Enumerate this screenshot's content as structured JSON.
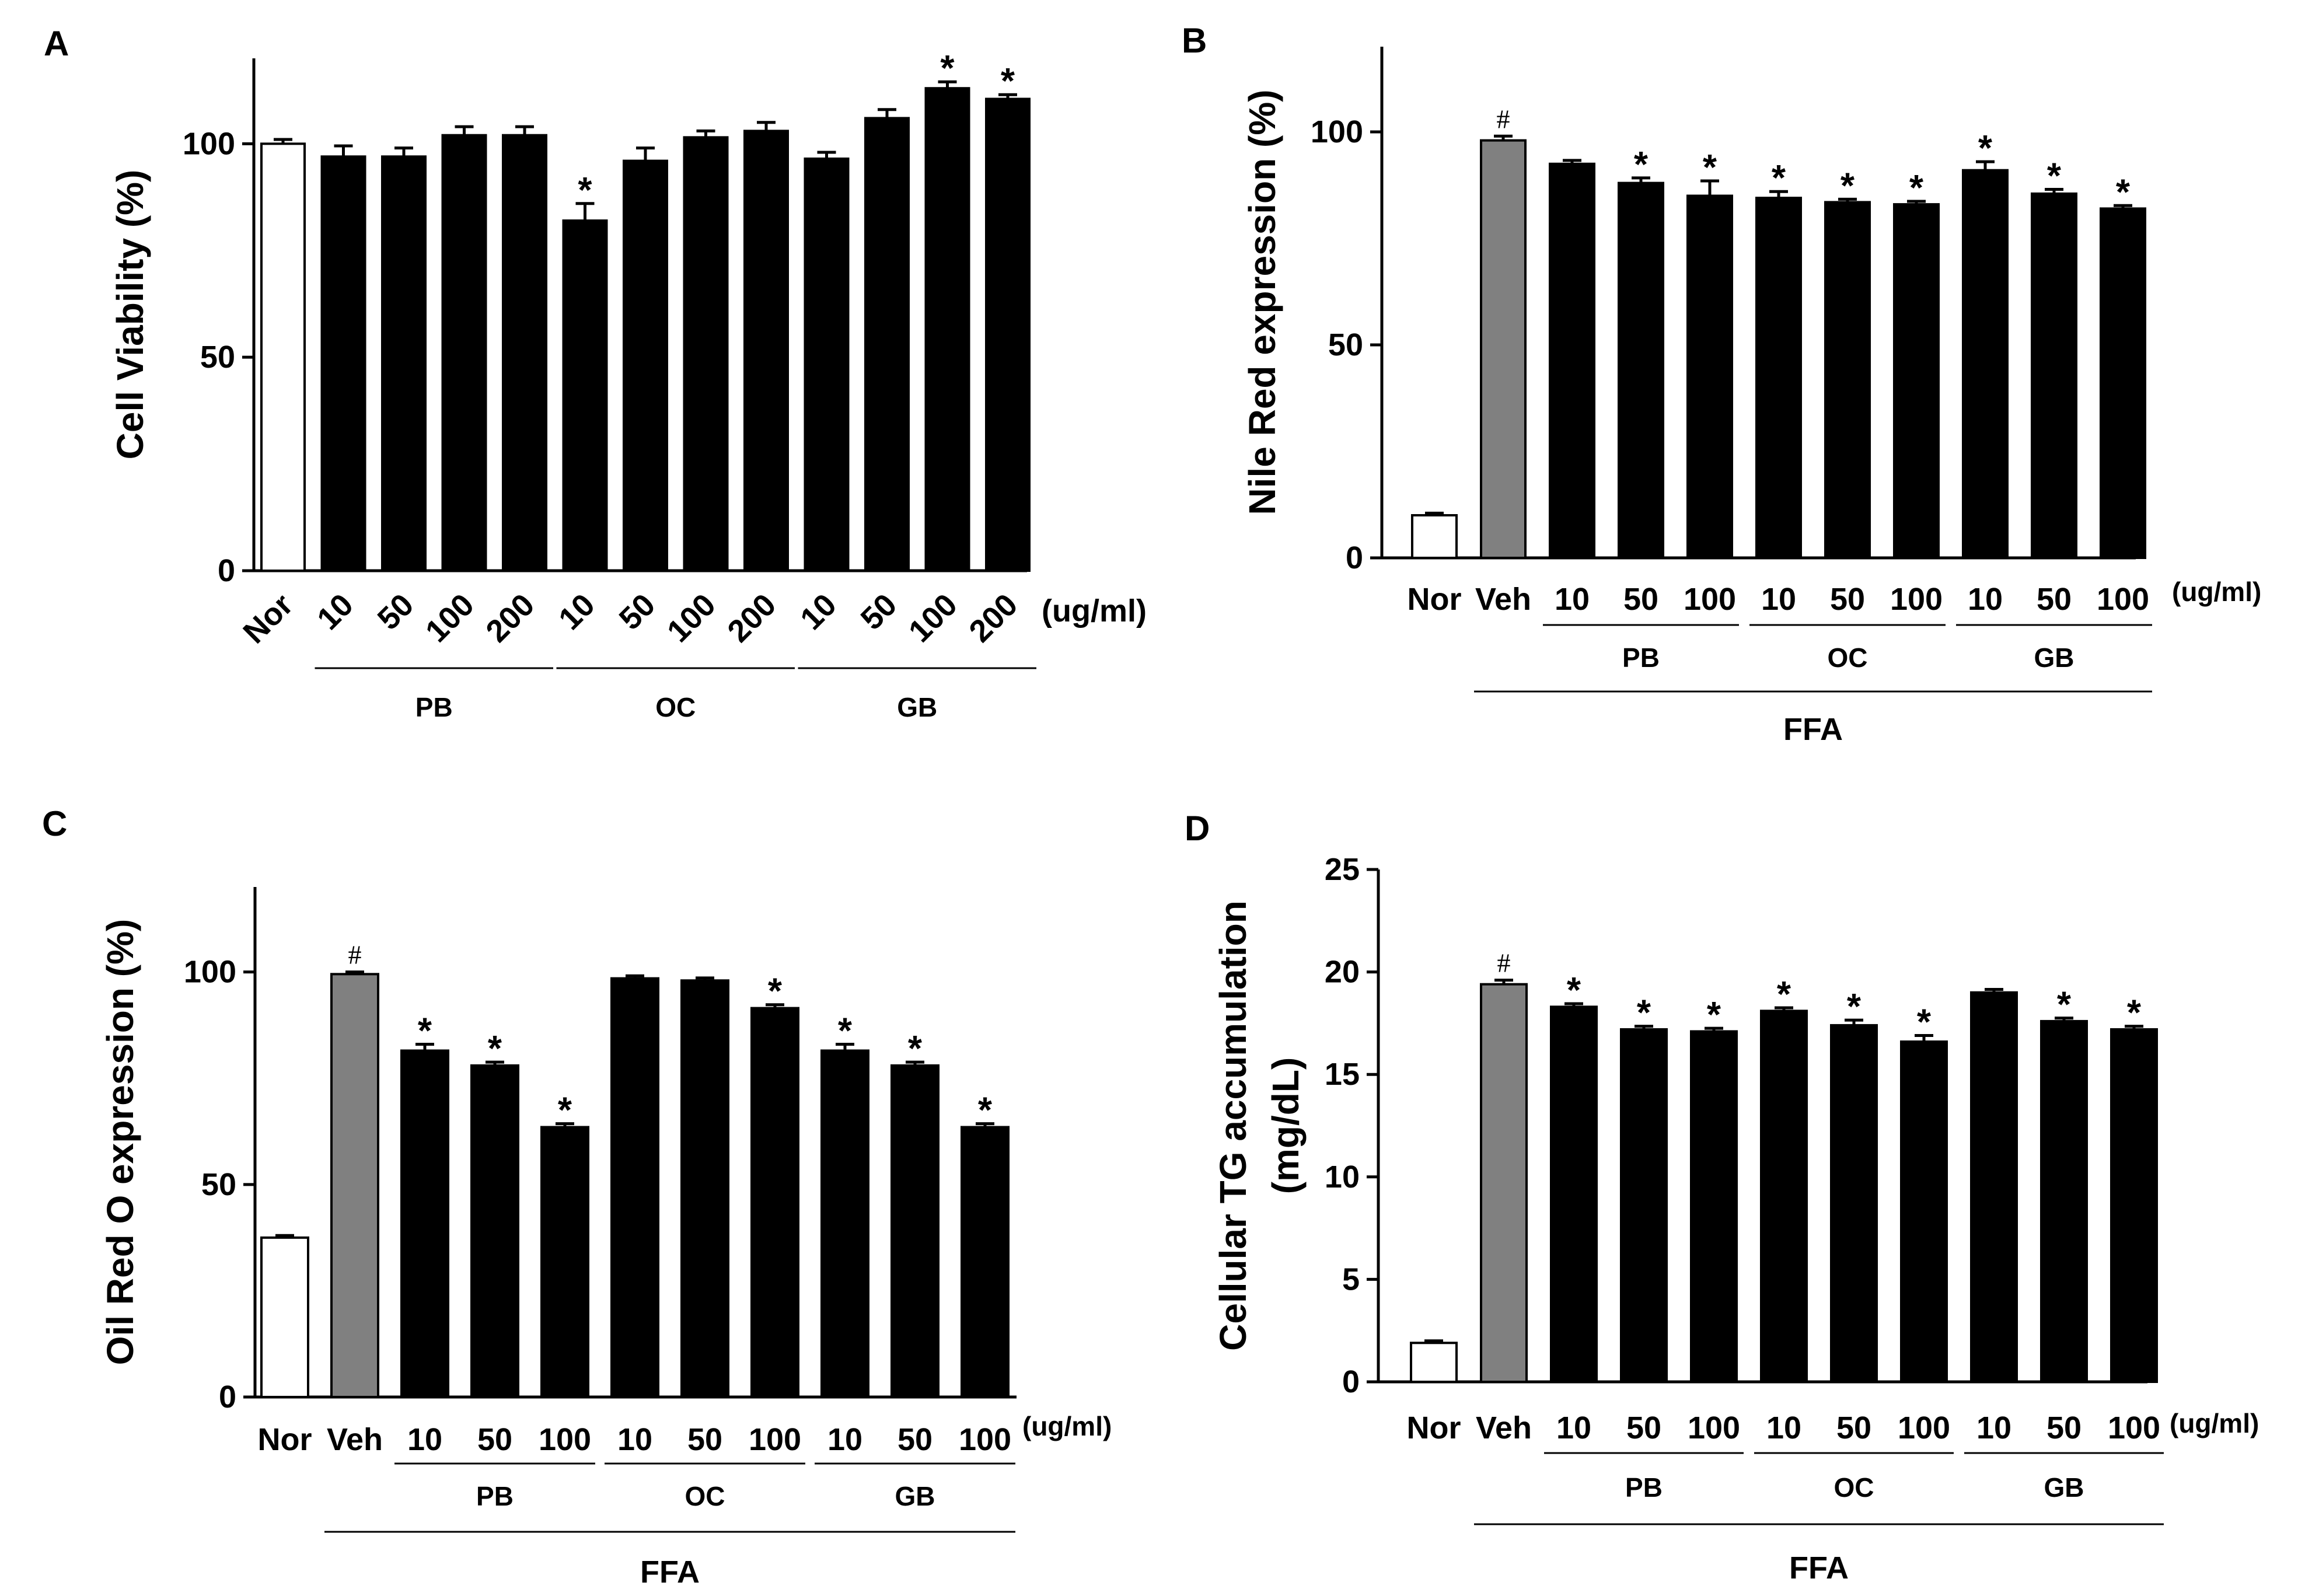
{
  "chart_data": [
    {
      "type": "bar",
      "panel": "A",
      "ylabel": "Cell Viability (%)",
      "ylim": [
        0,
        120
      ],
      "yticks": [
        0,
        50,
        100
      ],
      "unit_label": "(ug/ml)",
      "categories": [
        "Nor",
        "10",
        "50",
        "100",
        "200",
        "10",
        "50",
        "100",
        "200",
        "10",
        "50",
        "100",
        "200"
      ],
      "values": [
        100,
        97,
        97,
        102,
        102,
        82,
        96,
        101.5,
        103,
        96.5,
        106,
        113,
        110.5
      ],
      "errors": [
        1,
        2.5,
        2,
        2,
        2,
        4,
        3,
        1.5,
        2,
        1.5,
        2,
        1.5,
        1
      ],
      "fills": [
        "#ffffff",
        "#000000",
        "#000000",
        "#000000",
        "#000000",
        "#000000",
        "#000000",
        "#000000",
        "#000000",
        "#000000",
        "#000000",
        "#000000",
        "#000000"
      ],
      "marks": [
        "",
        "",
        "",
        "",
        "",
        "*",
        "",
        "",
        "",
        "",
        "",
        "*",
        "*"
      ],
      "groups": [
        {
          "label": "PB",
          "start": 1,
          "end": 4
        },
        {
          "label": "OC",
          "start": 5,
          "end": 8
        },
        {
          "label": "GB",
          "start": 9,
          "end": 12
        }
      ],
      "supergroup": null,
      "rotated_labels": true
    },
    {
      "type": "bar",
      "panel": "B",
      "ylabel": "Nile Red expression (%)",
      "ylim": [
        0,
        120
      ],
      "yticks": [
        0,
        50,
        100
      ],
      "unit_label": "(ug/ml)",
      "categories": [
        "Nor",
        "Veh",
        "10",
        "50",
        "100",
        "10",
        "50",
        "100",
        "10",
        "50",
        "100"
      ],
      "values": [
        10,
        98,
        92.5,
        88,
        85,
        84.5,
        83.5,
        83,
        91,
        85.5,
        82
      ],
      "errors": [
        0.5,
        1,
        0.8,
        1.2,
        3.5,
        1.5,
        0.7,
        0.7,
        2,
        1,
        0.7
      ],
      "fills": [
        "#ffffff",
        "#808080",
        "#000000",
        "#000000",
        "#000000",
        "#000000",
        "#000000",
        "#000000",
        "#000000",
        "#000000",
        "#000000"
      ],
      "marks": [
        "",
        "#",
        "",
        "*",
        "*",
        "*",
        "*",
        "*",
        "*",
        "*",
        "*"
      ],
      "groups": [
        {
          "label": "PB",
          "start": 2,
          "end": 4
        },
        {
          "label": "OC",
          "start": 5,
          "end": 7
        },
        {
          "label": "GB",
          "start": 8,
          "end": 10
        }
      ],
      "supergroup": {
        "label": "FFA",
        "start": 1,
        "end": 10
      },
      "rotated_labels": false
    },
    {
      "type": "bar",
      "panel": "C",
      "ylabel": "Oil Red O expression (%)",
      "ylim": [
        0,
        120
      ],
      "yticks": [
        0,
        50,
        100
      ],
      "unit_label": "(ug/ml)",
      "categories": [
        "Nor",
        "Veh",
        "10",
        "50",
        "100",
        "10",
        "50",
        "100",
        "10",
        "50",
        "100"
      ],
      "values": [
        37.5,
        99.5,
        81.5,
        78,
        63.5,
        98.5,
        98,
        91.5,
        81.5,
        78,
        63.5
      ],
      "errors": [
        0.5,
        0.5,
        1.5,
        0.8,
        0.8,
        0.6,
        0.6,
        0.8,
        1.5,
        0.8,
        0.8
      ],
      "fills": [
        "#ffffff",
        "#808080",
        "#000000",
        "#000000",
        "#000000",
        "#000000",
        "#000000",
        "#000000",
        "#000000",
        "#000000",
        "#000000"
      ],
      "marks": [
        "",
        "#",
        "*",
        "*",
        "*",
        "",
        "",
        "*",
        "*",
        "*",
        "*"
      ],
      "groups": [
        {
          "label": "PB",
          "start": 2,
          "end": 4
        },
        {
          "label": "OC",
          "start": 5,
          "end": 7
        },
        {
          "label": "GB",
          "start": 8,
          "end": 10
        }
      ],
      "supergroup": {
        "label": "FFA",
        "start": 1,
        "end": 10
      },
      "rotated_labels": false
    },
    {
      "type": "bar",
      "panel": "D",
      "ylabel": "Cellular TG accumulation",
      "ylabel2": "(mg/dL)",
      "ylim": [
        0,
        25
      ],
      "yticks": [
        0,
        5,
        10,
        15,
        20,
        25
      ],
      "unit_label": "(ug/ml)",
      "categories": [
        "Nor",
        "Veh",
        "10",
        "50",
        "100",
        "10",
        "50",
        "100",
        "10",
        "50",
        "100"
      ],
      "values": [
        1.9,
        19.4,
        18.3,
        17.2,
        17.1,
        18.1,
        17.4,
        16.6,
        19.0,
        17.6,
        17.2
      ],
      "errors": [
        0.1,
        0.2,
        0.15,
        0.15,
        0.15,
        0.15,
        0.25,
        0.3,
        0.15,
        0.15,
        0.15
      ],
      "fills": [
        "#ffffff",
        "#808080",
        "#000000",
        "#000000",
        "#000000",
        "#000000",
        "#000000",
        "#000000",
        "#000000",
        "#000000",
        "#000000"
      ],
      "marks": [
        "",
        "#",
        "*",
        "*",
        "*",
        "*",
        "*",
        "*",
        "",
        "*",
        "*"
      ],
      "groups": [
        {
          "label": "PB",
          "start": 2,
          "end": 4
        },
        {
          "label": "OC",
          "start": 5,
          "end": 7
        },
        {
          "label": "GB",
          "start": 8,
          "end": 10
        }
      ],
      "supergroup": {
        "label": "FFA",
        "start": 1,
        "end": 10
      },
      "rotated_labels": false
    }
  ]
}
